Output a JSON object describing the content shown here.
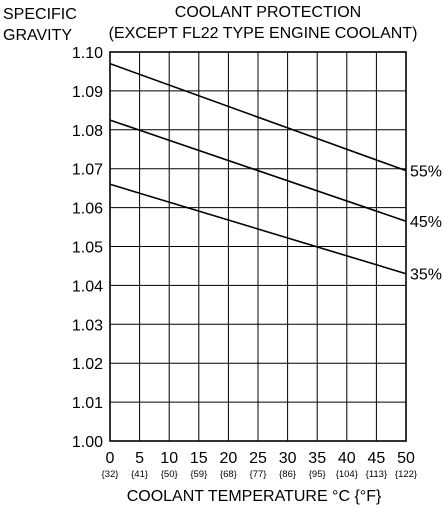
{
  "chart_data": {
    "type": "line",
    "title_line1": "COOLANT PROTECTION",
    "title_line2": "(EXCEPT FL22 TYPE ENGINE COOLANT)",
    "ylabel_line1": "SPECIFIC",
    "ylabel_line2": "GRAVITY",
    "xlabel": "COOLANT TEMPERATURE  °C {°F}",
    "xlim": [
      0,
      50
    ],
    "ylim": [
      1.0,
      1.1
    ],
    "grid": true,
    "x_ticks": [
      0,
      5,
      10,
      15,
      20,
      25,
      30,
      35,
      40,
      45,
      50
    ],
    "x_tick_labels": [
      "0",
      "5",
      "10",
      "15",
      "20",
      "25",
      "30",
      "35",
      "40",
      "45",
      "50"
    ],
    "x_tick_sublabels": [
      "{32}",
      "{41}",
      "{50}",
      "{59}",
      "{68}",
      "{77}",
      "{86}",
      "{95}",
      "{104}",
      "{113}",
      "{122}"
    ],
    "y_ticks": [
      1.0,
      1.01,
      1.02,
      1.03,
      1.04,
      1.05,
      1.06,
      1.07,
      1.08,
      1.09,
      1.1
    ],
    "y_tick_labels": [
      "1.00",
      "1.01",
      "1.02",
      "1.03",
      "1.04",
      "1.05",
      "1.06",
      "1.07",
      "1.08",
      "1.09",
      "1.10"
    ],
    "series": [
      {
        "name": "55%",
        "x": [
          0,
          50
        ],
        "y": [
          1.097,
          1.0695
        ]
      },
      {
        "name": "45%",
        "x": [
          0,
          50
        ],
        "y": [
          1.0825,
          1.0565
        ]
      },
      {
        "name": "35%",
        "x": [
          0,
          50
        ],
        "y": [
          1.066,
          1.043
        ]
      }
    ]
  }
}
